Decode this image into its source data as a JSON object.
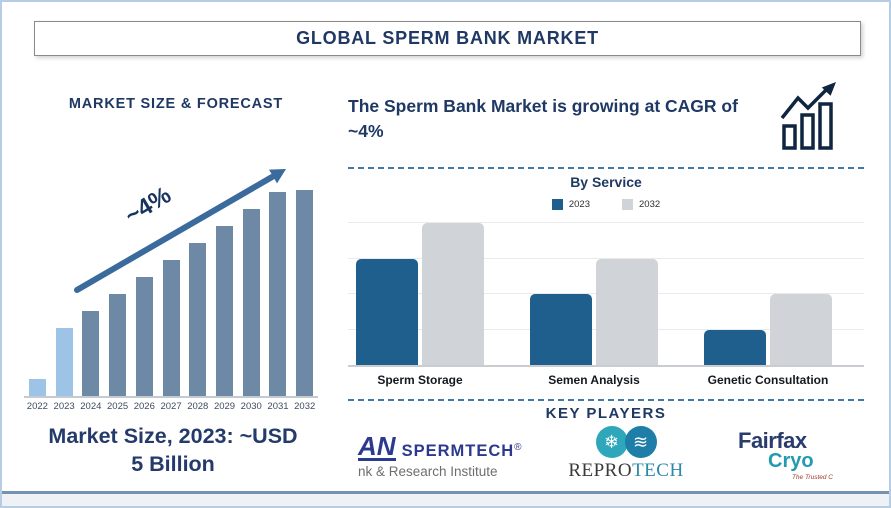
{
  "page": {
    "title": "GLOBAL SPERM BANK MARKET",
    "accent_navy": "#1F3864",
    "steel_blue": "#4178A8",
    "footer_bar_color": "#7593B0",
    "border_color": "#B7CDE4"
  },
  "left_panel": {
    "heading": "MARKET SIZE & FORECAST",
    "growth_annotation": "~4%",
    "caption_line1": "Market Size, 2023: ~USD",
    "caption_line2": "5 Billion"
  },
  "right_panel": {
    "headline": "The Sperm Bank Market is growing at CAGR of ~4%",
    "growth_icon": "bar-chart-rising-arrow-icon",
    "section_title": "By Service",
    "key_players_title": "KEY PLAYERS",
    "players": [
      {
        "prefix": "AN",
        "name": "SPERMTECH",
        "registered_mark": "®",
        "subtitle": "nk & Research Institute",
        "icon": "spermtech-wordmark-left-cropped"
      },
      {
        "name_primary": "REPRO",
        "name_secondary": "TECH",
        "icon_snowflake": "❄",
        "icon_waves": "≋",
        "icon": "snowflake-and-wave-globe-circles"
      },
      {
        "line1": "Fairfax",
        "line2": "Cryo",
        "tagline": "The Trusted C",
        "icon": "dna-helix-x"
      }
    ]
  },
  "chart_data": [
    {
      "type": "bar",
      "title": "MARKET SIZE & FORECAST",
      "categories": [
        "2022",
        "2023",
        "2024",
        "2025",
        "2026",
        "2027",
        "2028",
        "2029",
        "2030",
        "2031",
        "2032"
      ],
      "values": [
        1,
        4,
        5,
        6,
        7,
        8,
        9,
        10,
        11,
        12,
        12.1
      ],
      "unit": "relative height (no y-axis shown)",
      "annotation": "~4%",
      "annotation_meaning": "CAGR growth arrow",
      "xlabel": "",
      "ylabel": "",
      "grid": false,
      "bar_color_default": "#6D89A6",
      "bar_color_highlight": "#9DC3E6",
      "highlight_categories": [
        "2022",
        "2023"
      ]
    },
    {
      "type": "bar",
      "title": "By Service",
      "categories": [
        "Sperm Storage",
        "Semen Analysis",
        "Genetic Consultation"
      ],
      "series": [
        {
          "name": "2023",
          "color": "#1F5F8D",
          "values": [
            3,
            2,
            1
          ]
        },
        {
          "name": "2032",
          "color": "#D0D4D8",
          "values": [
            4,
            3,
            2
          ]
        }
      ],
      "ylim": [
        0,
        4
      ],
      "grid": true,
      "legend_position": "top",
      "unit": "relative height (no y-axis shown)"
    }
  ]
}
